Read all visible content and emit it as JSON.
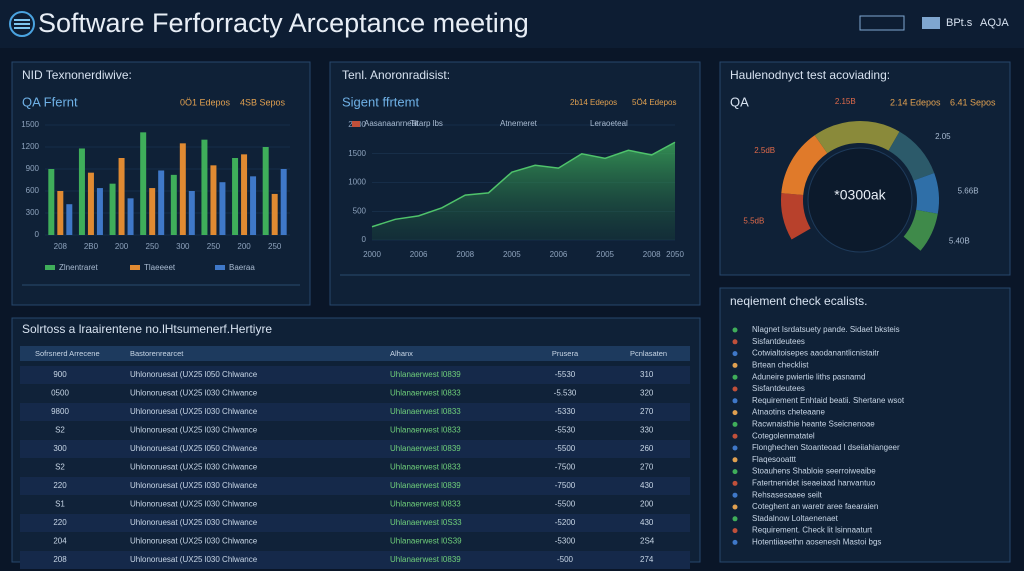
{
  "header": {
    "title": "Software Ferforracty Arceptance meeting",
    "badges": [
      "BPt.s",
      "AQJA"
    ]
  },
  "chart_data": [
    {
      "type": "bar",
      "title": "NID Texnonerdiwive:",
      "subtitle": "QA Ffernt",
      "annotations": [
        "0Ö1 Edepos",
        "4SB Sepos"
      ],
      "categories": [
        "208",
        "2B0",
        "200",
        "250",
        "300",
        "250",
        "200",
        "250"
      ],
      "series": [
        {
          "name": "Zlnentraret",
          "color": "#3fae5a",
          "values": [
            900,
            1180,
            700,
            1400,
            820,
            1300,
            1050,
            1200
          ]
        },
        {
          "name": "Tlaeeeet",
          "color": "#e08a32",
          "values": [
            600,
            850,
            1050,
            640,
            1250,
            950,
            1100,
            560
          ]
        },
        {
          "name": "Baeraa",
          "color": "#3f78c8",
          "values": [
            420,
            640,
            500,
            880,
            600,
            720,
            800,
            900
          ]
        }
      ],
      "ylim": [
        0,
        1500
      ],
      "yticks": [
        0,
        300,
        600,
        900,
        1200,
        1500
      ],
      "grid": true
    },
    {
      "type": "area",
      "title": "Tenl. Anoronradisist:",
      "subtitle": "Sigent ffrtemt",
      "annotations": [
        "2b14 Edepos",
        "5Ö4 Edepos",
        "Tltarp lbs",
        "Atnemeret",
        "Leraoeteal"
      ],
      "categories": [
        "2000",
        null,
        "2006",
        null,
        "2008",
        null,
        "2005",
        null,
        "2006",
        null,
        "2005",
        null,
        "2008",
        "2050"
      ],
      "series": [
        {
          "name": "Aasanaanrneat",
          "color": "#4fc36b",
          "values": [
            230,
            360,
            420,
            560,
            780,
            820,
            1180,
            1300,
            1250,
            1500,
            1420,
            1560,
            1480,
            1700
          ]
        }
      ],
      "ylim": [
        0,
        2000
      ],
      "yticks": [
        0,
        500,
        1000,
        1500,
        2000
      ],
      "grid": true
    },
    {
      "type": "pie",
      "title": "Haulenodnyct test acoviading:",
      "subtitle": "QA",
      "center_label": "*0300ak",
      "annotations": [
        "2.14 Edepos",
        "6.41 Sepos"
      ],
      "categories": [
        "5.5dB",
        "2.5dB",
        "2.15B",
        "2.05",
        "5.66B",
        "5.40B"
      ],
      "values": [
        14,
        20,
        26,
        16,
        12,
        12
      ],
      "colors": [
        "#b8412c",
        "#e07a2a",
        "#8a8a3a",
        "#2c5a6a",
        "#2f6fa8",
        "#3f8a4a"
      ]
    }
  ],
  "table": {
    "title": "Solrtoss a lraairentene no.lHtsumenerf.Hertiyre",
    "headers": [
      "Sofrsnerd Arrecene",
      "Bastorenrearcet",
      "Alhanx",
      "Prusera",
      "Pcnlasaten"
    ],
    "rows": [
      [
        "900",
        "Uhlonoruesat (UX25 l050 Chlwance",
        "Uhlanaerwest l0839",
        "-5530",
        "310"
      ],
      [
        "0500",
        "Uhlonoruesat (UX25 l030 Chlwance",
        "Uhlanaerwest l0833",
        "-5.530",
        "320"
      ],
      [
        "9800",
        "Uhlonoruesat (UX25 l030 Chlwance",
        "Uhlanaerwest l0833",
        "-5330",
        "270"
      ],
      [
        "S2",
        "Uhlonoruesat (UX25 l030 Chlwance",
        "Uhlanaerwest l0833",
        "-5530",
        "330"
      ],
      [
        "300",
        "Uhlonoruesat (UX25 l050 Chlwance",
        "Uhlanaerwest l0839",
        "-5500",
        "260"
      ],
      [
        "S2",
        "Uhlonoruesat (UX25 l030 Chlwance",
        "Uhlanaerwest l0833",
        "-7500",
        "270"
      ],
      [
        "220",
        "Uhlonoruesat (UX25 l030 Chlwance",
        "Uhlanaerwest l0839",
        "-7500",
        "430"
      ],
      [
        "S1",
        "Uhlonoruesat (UX25 l030 Chlwance",
        "Uhlanaerwest l0833",
        "-5500",
        "200"
      ],
      [
        "220",
        "Uhlonoruesat (UX25 l030 Chlwance",
        "Uhlanaerwest l0S33",
        "-5200",
        "430"
      ],
      [
        "204",
        "Uhlonoruesat (UX25 l030 Chlwance",
        "Uhlanaerwest l0S39",
        "-5300",
        "2S4"
      ],
      [
        "208",
        "Uhlonoruesat (UX25 l030 Chlwance",
        "Uhlanaerwest l0839",
        "-500",
        "274"
      ]
    ]
  },
  "checklist": {
    "title": "neqiement check ecalists.",
    "items": [
      "Nlagnet Isrdatsuety pande. Sidaet bksteis",
      "Sisfantdeutees",
      "Cotwialtoisepes aaodanantlicnistaitr",
      "Brtean checklist",
      "Aduneire pwiertie liths pasnamd",
      "Sisfantdeutees",
      "Requirement Enhtaid beatii. Shertane wsot",
      "Atnaotins cheteaane",
      "Racwnaisthie heante Sseicnenoae",
      "Cotegolenmatatel",
      "Flonghechen Stoanteoad l dseiiahiangeer",
      "Flaqesooattt",
      "Stoauhens Shabloie seerroiweaibe",
      "Fatertnenidet iseaeiaad hanvantuo",
      "Rehsasesaaee seilt",
      "Coteghent an waretr aree faearaien",
      "Stadalnow Loltaenenaet",
      "Requirement. Check lit lsinnaaturt",
      "Hotentiiaeethn aosenesh Mastoi bgs"
    ]
  }
}
